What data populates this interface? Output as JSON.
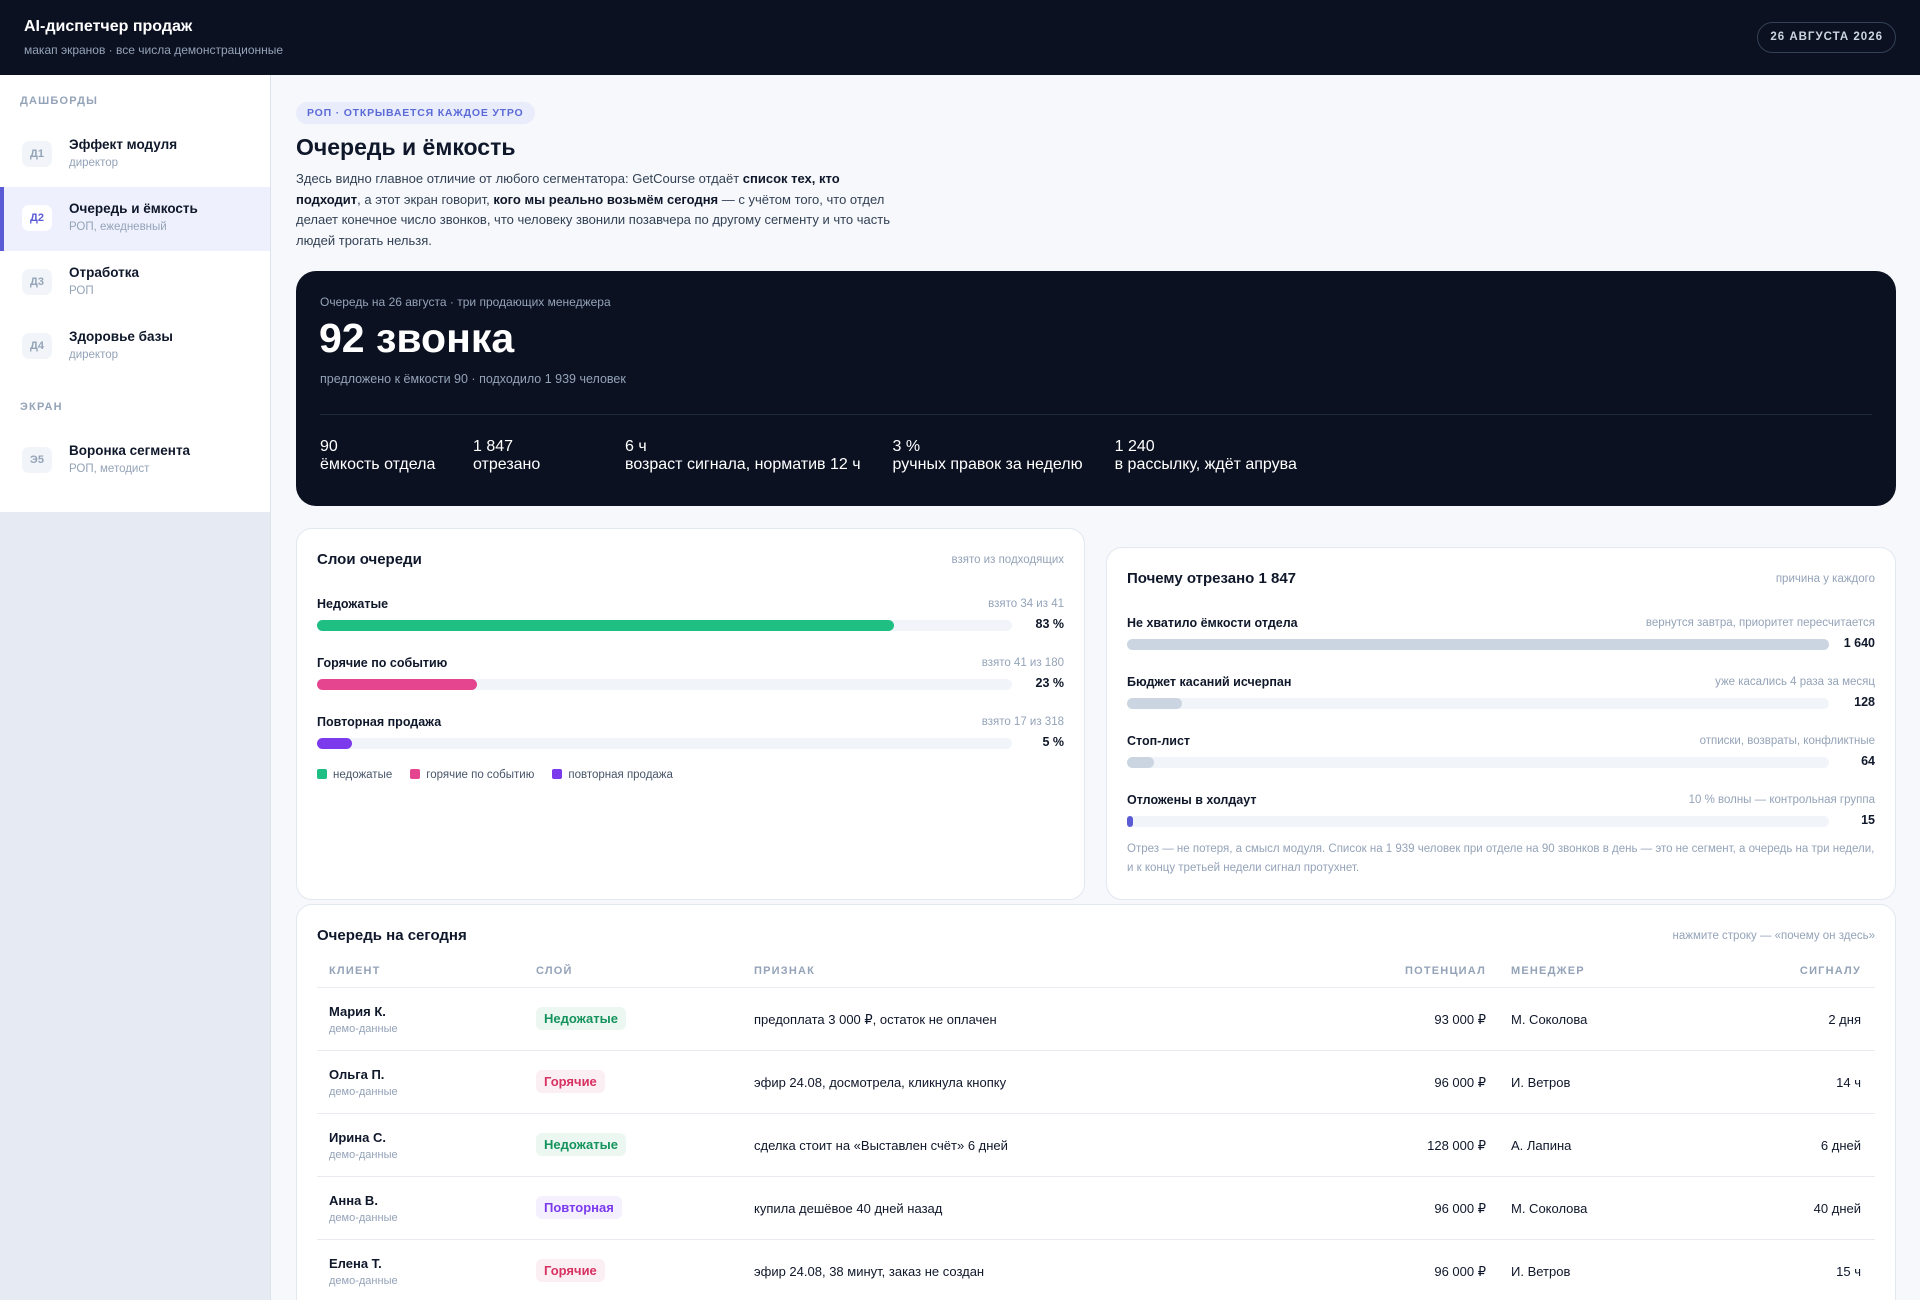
{
  "header": {
    "title": "AI-диспетчер продаж",
    "subtitle": "макап экранов · все числа демонстрационные",
    "date": "26 АВГУСТА 2026"
  },
  "sidebar": {
    "sections": [
      {
        "title": "ДАШБОРДЫ",
        "items": [
          {
            "code": "Д1",
            "name": "Эффект модуля",
            "role": "директор",
            "active": false
          },
          {
            "code": "Д2",
            "name": "Очередь и ёмкость",
            "role": "РОП, ежедневный",
            "active": true
          },
          {
            "code": "Д3",
            "name": "Отработка",
            "role": "РОП",
            "active": false
          },
          {
            "code": "Д4",
            "name": "Здоровье базы",
            "role": "директор",
            "active": false
          }
        ]
      },
      {
        "title": "ЭКРАН",
        "items": [
          {
            "code": "Э5",
            "name": "Воронка сегмента",
            "role": "РОП, методист",
            "active": false
          }
        ]
      }
    ]
  },
  "page": {
    "badge": "РОП · ОТКРЫВАЕТСЯ КАЖДОЕ УТРО",
    "title": "Очередь и ёмкость",
    "intro": [
      {
        "text": "Здесь видно главное отличие от любого сегментатора: GetCourse отдаёт ",
        "bold": false
      },
      {
        "text": "список тех, кто подходит",
        "bold": true
      },
      {
        "text": ", а этот экран говорит, ",
        "bold": false
      },
      {
        "text": "кого мы реально возьмём сегодня",
        "bold": true
      },
      {
        "text": " — с учётом того, что отдел делает конечное число звонков, что человеку звонили позавчера по другому сегменту и что часть людей трогать нельзя.",
        "bold": false
      }
    ]
  },
  "hero": {
    "caption": "Очередь на 26 августа · три продающих менеджера",
    "headline": "92 звонка",
    "sub": "предложено к ёмкости 90 · подходило 1 939 человек",
    "stats": [
      {
        "value": "90",
        "label": "ёмкость отдела"
      },
      {
        "value": "1 847",
        "label": "отрезано"
      },
      {
        "value": "6 ч",
        "label": "возраст сигнала, норматив 12 ч"
      },
      {
        "value": "3 %",
        "label": "ручных правок за неделю"
      },
      {
        "value": "1 240",
        "label": "в рассылку, ждёт апрува"
      }
    ]
  },
  "layers": {
    "title": "Слои очереди",
    "note": "взято из подходящих",
    "items": [
      {
        "name": "Недожатые",
        "taken": "взято 34 из 41",
        "percent": {
          "value": 83,
          "label": "83 %"
        },
        "color": "#1fbf84"
      },
      {
        "name": "Горячие по событию",
        "taken": "взято 41 из 180",
        "percent": {
          "value": 23,
          "label": "23 %"
        },
        "color": "#e5458f"
      },
      {
        "name": "Повторная продажа",
        "taken": "взято 17 из 318",
        "percent": {
          "value": 5,
          "label": "5 %"
        },
        "color": "#7c3aed"
      }
    ],
    "legend": [
      {
        "name": "недожатые",
        "color": "#1fbf84"
      },
      {
        "name": "горячие по событию",
        "color": "#e5458f"
      },
      {
        "name": "повторная продажа",
        "color": "#7c3aed"
      }
    ]
  },
  "cuts": {
    "title": "Почему отрезано 1 847",
    "note": "причина у каждого",
    "items": [
      {
        "name": "Не хватило ёмкости отдела",
        "note": "вернутся завтра, приоритет пересчитается",
        "count": {
          "value": 1640,
          "label": "1 640"
        },
        "color": "#cbd5e1"
      },
      {
        "name": "Бюджет касаний исчерпан",
        "note": "уже касались 4 раза за месяц",
        "count": {
          "value": 128,
          "label": "128"
        },
        "color": "#cbd5e1"
      },
      {
        "name": "Стоп-лист",
        "note": "отписки, возвраты, конфликтные",
        "count": {
          "value": 64,
          "label": "64"
        },
        "color": "#cbd5e1"
      },
      {
        "name": "Отложены в холдаут",
        "note": "10 % волны — контрольная группа",
        "count": {
          "value": 15,
          "label": "15"
        },
        "color": "#5b5bd6"
      }
    ],
    "footnote": "Отрез — не потеря, а смысл модуля. Список на 1 939 человек при отделе на 90 звонков в день — это не сегмент, а очередь на три недели, и к концу третьей недели сигнал протухнет."
  },
  "queue": {
    "title": "Очередь на сегодня",
    "hint": "нажмите строку — «почему он здесь»",
    "columns": [
      "КЛИЕНТ",
      "СЛОЙ",
      "ПРИЗНАК",
      "ПОТЕНЦИАЛ",
      "МЕНЕДЖЕР",
      "СИГНАЛУ"
    ],
    "rows": [
      {
        "client": "Мария К.",
        "note": "демо-данные",
        "layer": "Недожатые",
        "tag_color": "#15935d",
        "sign": "предоплата 3 000 ₽, остаток не оплачен",
        "potential": "93 000 ₽",
        "manager": "М. Соколова",
        "signal": "2 дня"
      },
      {
        "client": "Ольга П.",
        "note": "демо-данные",
        "layer": "Горячие",
        "tag_color": "#d63262",
        "sign": "эфир 24.08, досмотрела, кликнула кнопку",
        "potential": "96 000 ₽",
        "manager": "И. Ветров",
        "signal": "14 ч"
      },
      {
        "client": "Ирина С.",
        "note": "демо-данные",
        "layer": "Недожатые",
        "tag_color": "#15935d",
        "sign": "сделка стоит на «Выставлен счёт» 6 дней",
        "potential": "128 000 ₽",
        "manager": "А. Лапина",
        "signal": "6 дней"
      },
      {
        "client": "Анна В.",
        "note": "демо-данные",
        "layer": "Повторная",
        "tag_color": "#7c3aed",
        "sign": "купила дешёвое 40 дней назад",
        "potential": "96 000 ₽",
        "manager": "М. Соколова",
        "signal": "40 дней"
      },
      {
        "client": "Елена Т.",
        "note": "демо-данные",
        "layer": "Горячие",
        "tag_color": "#d63262",
        "sign": "эфир 24.08, 38 минут, заказ не создан",
        "potential": "96 000 ₽",
        "manager": "И. Ветров",
        "signal": "15 ч"
      }
    ]
  }
}
